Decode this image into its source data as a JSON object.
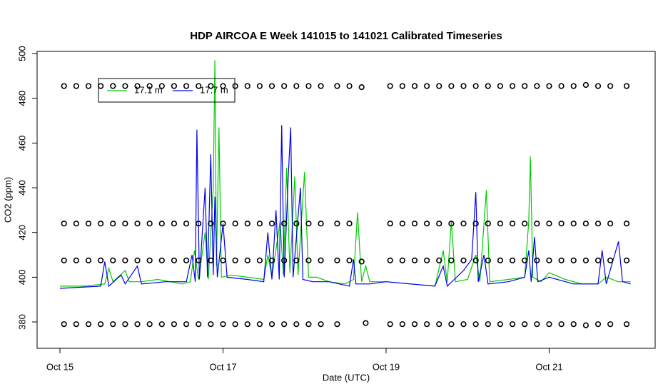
{
  "chart_data": {
    "type": "line",
    "title": "HDP AIRCOA E  Week 141015 to 141021  Calibrated Timeseries",
    "x_label": "Date (UTC)",
    "y_label": "CO2 (ppm)",
    "xlim": [
      14.72,
      22.3
    ],
    "xticks": [
      {
        "value": 15,
        "label": "Oct 15"
      },
      {
        "value": 17,
        "label": "Oct 17"
      },
      {
        "value": 19,
        "label": "Oct 19"
      },
      {
        "value": 21,
        "label": "Oct 21"
      }
    ],
    "ylim": [
      368.2,
      501
    ],
    "yticks": [
      380,
      400,
      420,
      440,
      460,
      480,
      500
    ],
    "legend": "topleft",
    "series": [
      {
        "name": "17.1 m",
        "color": "#00cc00",
        "mode": "lines",
        "x": [
          15.0,
          15.3,
          15.55,
          15.6,
          15.65,
          15.8,
          15.85,
          16.0,
          16.2,
          16.5,
          16.6,
          16.65,
          16.7,
          16.78,
          16.82,
          16.88,
          16.9,
          16.92,
          16.95,
          16.98,
          17.1,
          17.3,
          17.5,
          17.55,
          17.6,
          17.7,
          17.74,
          17.78,
          17.82,
          17.88,
          17.92,
          18.0,
          18.05,
          18.15,
          18.3,
          18.5,
          18.6,
          18.65,
          18.7,
          18.75,
          18.8,
          19.0,
          19.3,
          19.6,
          19.7,
          19.75,
          19.8,
          19.85,
          20.0,
          20.1,
          20.15,
          20.23,
          20.27,
          20.5,
          20.7,
          20.75,
          20.77,
          20.8,
          20.9,
          21.0,
          21.2,
          21.4,
          21.6,
          21.7,
          21.85,
          22.0
        ],
        "values": [
          396,
          396,
          397,
          404,
          398,
          403,
          398,
          398,
          399,
          397,
          398,
          412,
          399,
          420,
          399,
          440,
          497,
          405,
          467,
          400,
          401,
          400,
          399,
          410,
          400,
          425,
          401,
          449,
          402,
          445,
          401,
          447,
          400,
          400,
          398,
          397,
          399,
          429,
          398,
          405,
          398,
          398,
          397,
          396,
          412,
          398,
          425,
          398,
          399,
          410,
          398,
          439,
          398,
          399,
          400,
          425,
          454,
          400,
          398,
          402,
          399,
          397,
          397,
          400,
          398,
          398
        ]
      },
      {
        "name": "17.7 m",
        "color": "#0000ee",
        "mode": "lines",
        "x": [
          15.0,
          15.5,
          15.55,
          15.6,
          15.75,
          15.8,
          15.95,
          16.0,
          16.3,
          16.55,
          16.62,
          16.66,
          16.68,
          16.71,
          16.78,
          16.81,
          16.85,
          16.88,
          16.9,
          16.93,
          17.0,
          17.05,
          17.3,
          17.5,
          17.55,
          17.6,
          17.65,
          17.69,
          17.72,
          17.75,
          17.8,
          17.83,
          17.86,
          17.95,
          17.98,
          18.1,
          18.3,
          18.55,
          18.6,
          18.63,
          18.8,
          19.0,
          19.3,
          19.6,
          19.7,
          19.75,
          19.95,
          20.05,
          20.1,
          20.13,
          20.2,
          20.25,
          20.5,
          20.7,
          20.75,
          20.78,
          20.82,
          20.86,
          21.0,
          21.3,
          21.6,
          21.65,
          21.7,
          21.85,
          21.9,
          22.0
        ],
        "values": [
          395,
          396,
          407,
          396,
          401,
          397,
          405,
          397,
          398,
          398,
          410,
          398,
          466,
          399,
          440,
          400,
          455,
          401,
          436,
          400,
          424,
          400,
          399,
          398,
          420,
          399,
          430,
          399,
          468,
          400,
          445,
          467,
          400,
          440,
          399,
          398,
          398,
          396,
          408,
          397,
          397,
          398,
          397,
          396,
          405,
          396,
          403,
          408,
          438,
          398,
          410,
          397,
          398,
          400,
          412,
          398,
          418,
          398,
          400,
          397,
          397,
          412,
          397,
          416,
          398,
          397
        ]
      },
      {
        "color": "#000000",
        "mode": "points",
        "x": [
          15.05,
          15.2,
          15.35,
          15.5,
          15.65,
          15.8,
          15.95,
          16.1,
          16.25,
          16.4,
          16.55,
          16.7,
          16.85,
          17.0,
          17.15,
          17.3,
          17.45,
          17.6,
          17.75,
          17.9,
          18.05,
          18.2,
          18.4,
          18.55,
          18.7,
          19.05,
          19.2,
          19.35,
          19.5,
          19.65,
          19.8,
          19.95,
          20.1,
          20.25,
          20.4,
          20.55,
          20.7,
          20.85,
          21.0,
          21.15,
          21.3,
          21.45,
          21.6,
          21.75,
          21.95
        ],
        "values": [
          485.5,
          485.5,
          485.5,
          485.5,
          485.5,
          485.5,
          485.5,
          485.5,
          485.5,
          485.5,
          485.5,
          485.5,
          485.5,
          485.5,
          485.5,
          485.5,
          485.5,
          485.5,
          485.5,
          485.5,
          485.5,
          485.5,
          485.5,
          485.5,
          485,
          485.5,
          485.5,
          485.5,
          485.5,
          485.5,
          485.5,
          485.5,
          485.5,
          485.5,
          485.5,
          485.5,
          485.5,
          485.5,
          485.5,
          485.5,
          485.5,
          486,
          485.5,
          485.5,
          485.5
        ]
      },
      {
        "color": "#000000",
        "mode": "points",
        "x": [
          15.05,
          15.2,
          15.35,
          15.5,
          15.65,
          15.8,
          15.95,
          16.1,
          16.25,
          16.4,
          16.55,
          16.7,
          16.85,
          17.0,
          17.15,
          17.3,
          17.45,
          17.6,
          17.75,
          17.9,
          18.05,
          18.2,
          18.4,
          18.55,
          19.05,
          19.2,
          19.35,
          19.5,
          19.65,
          19.8,
          19.95,
          20.1,
          20.25,
          20.4,
          20.55,
          20.7,
          20.85,
          21.0,
          21.15,
          21.3,
          21.45,
          21.6,
          21.75,
          21.95
        ],
        "values": [
          424,
          424,
          424,
          424,
          424,
          424,
          424,
          424,
          424,
          424,
          424,
          424,
          424,
          424,
          424,
          424,
          424,
          424,
          424,
          424,
          424,
          424,
          424,
          424,
          424,
          424,
          424,
          424,
          424,
          424,
          424,
          424,
          424,
          424,
          424,
          424,
          424,
          424,
          424,
          424,
          424,
          424,
          424,
          424
        ]
      },
      {
        "color": "#000000",
        "mode": "points",
        "x": [
          15.05,
          15.2,
          15.35,
          15.5,
          15.65,
          15.8,
          15.95,
          16.1,
          16.25,
          16.4,
          16.55,
          16.7,
          16.85,
          17.0,
          17.15,
          17.3,
          17.45,
          17.6,
          17.75,
          17.9,
          18.05,
          18.2,
          18.4,
          18.55,
          18.7,
          19.05,
          19.2,
          19.35,
          19.5,
          19.65,
          19.8,
          19.95,
          20.1,
          20.25,
          20.4,
          20.55,
          20.7,
          20.85,
          21.0,
          21.15,
          21.3,
          21.45,
          21.6,
          21.75,
          21.95
        ],
        "values": [
          407.5,
          407.5,
          407.5,
          407.5,
          407.5,
          407.5,
          407.5,
          407.5,
          407.5,
          407.5,
          407.5,
          407.5,
          407.5,
          407.5,
          407.5,
          407.5,
          407.5,
          407.5,
          407.5,
          407.5,
          407.5,
          407.5,
          407.5,
          407.5,
          407,
          407.5,
          407.5,
          407.5,
          407.5,
          407.5,
          407.5,
          407.5,
          407.5,
          407.5,
          407.5,
          407.5,
          407.5,
          407.5,
          407.5,
          407.5,
          407.5,
          407.5,
          407.5,
          407.5,
          407.5
        ]
      },
      {
        "color": "#000000",
        "mode": "points",
        "x": [
          15.05,
          15.2,
          15.35,
          15.5,
          15.65,
          15.8,
          15.95,
          16.1,
          16.25,
          16.4,
          16.55,
          16.7,
          16.85,
          17.0,
          17.15,
          17.3,
          17.45,
          17.6,
          17.75,
          17.9,
          18.05,
          18.2,
          18.4,
          18.75,
          19.05,
          19.2,
          19.35,
          19.5,
          19.65,
          19.8,
          19.95,
          20.1,
          20.25,
          20.4,
          20.55,
          20.7,
          20.85,
          21.0,
          21.15,
          21.3,
          21.45,
          21.6,
          21.75,
          21.95
        ],
        "values": [
          379,
          379,
          379,
          379,
          379,
          379,
          379,
          379,
          379,
          379,
          379,
          379,
          379,
          379,
          379,
          379,
          379,
          379,
          379,
          379,
          379,
          379,
          379,
          379.5,
          379,
          379,
          379,
          379,
          379,
          379,
          379,
          379,
          379,
          379,
          379,
          379,
          379,
          379,
          379,
          379,
          378.5,
          379,
          379,
          379
        ]
      }
    ]
  }
}
